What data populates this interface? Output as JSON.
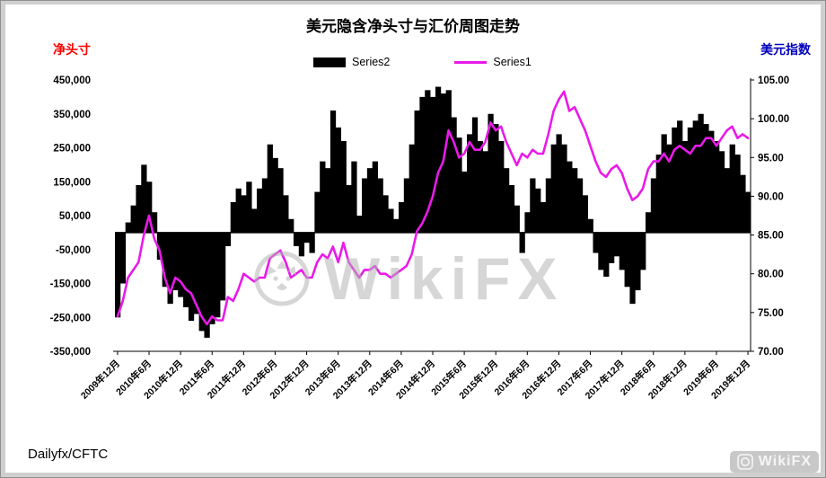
{
  "page": {
    "title": "美元隐含净头寸与汇价周图走势",
    "left_axis_title": "净头寸",
    "right_axis_title": "美元指数",
    "source": "Dailyfx/CFTC",
    "watermark_text": "WikiFX",
    "corner_watermark_text": "WikiFX"
  },
  "legend": {
    "series2_label": "Series2",
    "series1_label": "Series1"
  },
  "colors": {
    "bar": "#000000",
    "line": "#e91ae9",
    "left_axis_title": "#ff0000",
    "right_axis_title": "#0000bb",
    "background": "#cfcfcf",
    "panel": "#ffffff",
    "watermark": "#b5b5b5"
  },
  "chart_data": {
    "type": "combo",
    "title": "美元隐含净头寸与汇价周图走势",
    "legend_position": "top",
    "grid": false,
    "source": "Dailyfx/CFTC",
    "points_per_tick": 6,
    "x_tick_labels": [
      "2009年12月",
      "2010年6月",
      "2010年12月",
      "2011年6月",
      "2011年12月",
      "2012年6月",
      "2012年12月",
      "2013年6月",
      "2013年12月",
      "2014年6月",
      "2014年12月",
      "2015年6月",
      "2015年12月",
      "2016年6月",
      "2016年12月",
      "2017年6月",
      "2017年12月",
      "2018年6月",
      "2018年12月",
      "2019年6月",
      "2019年12月"
    ],
    "left_axis": {
      "title": "净头寸",
      "min": -350000,
      "max": 450000,
      "tick_values": [
        450000,
        350000,
        250000,
        150000,
        50000,
        -50000,
        -150000,
        -250000,
        -350000
      ],
      "tick_labels": [
        "450,000",
        "350,000",
        "250,000",
        "150,000",
        "50,000",
        "-50,000",
        "-150,000",
        "-250,000",
        "-350,000"
      ]
    },
    "right_axis": {
      "title": "美元指数",
      "min": 70,
      "max": 105,
      "tick_values": [
        105,
        100,
        95,
        90,
        85,
        80,
        75,
        70
      ],
      "tick_labels": [
        "105.00",
        "100.00",
        "95.00",
        "90.00",
        "85.00",
        "80.00",
        "75.00",
        "70.00"
      ]
    },
    "series": [
      {
        "name": "Series2",
        "type": "bar",
        "axis": "left",
        "color": "#000000",
        "values": [
          -250000,
          -150000,
          30000,
          80000,
          140000,
          200000,
          150000,
          60000,
          -80000,
          -160000,
          -210000,
          -170000,
          -190000,
          -220000,
          -260000,
          -240000,
          -290000,
          -310000,
          -270000,
          -250000,
          -200000,
          -40000,
          90000,
          130000,
          110000,
          150000,
          70000,
          130000,
          160000,
          260000,
          220000,
          190000,
          110000,
          40000,
          -40000,
          -70000,
          -30000,
          -60000,
          120000,
          210000,
          190000,
          360000,
          310000,
          270000,
          140000,
          210000,
          50000,
          160000,
          190000,
          210000,
          160000,
          110000,
          70000,
          40000,
          90000,
          160000,
          260000,
          360000,
          400000,
          420000,
          400000,
          430000,
          410000,
          420000,
          340000,
          280000,
          180000,
          290000,
          340000,
          270000,
          240000,
          350000,
          320000,
          270000,
          190000,
          140000,
          80000,
          -60000,
          60000,
          160000,
          130000,
          90000,
          160000,
          260000,
          290000,
          260000,
          210000,
          190000,
          160000,
          110000,
          40000,
          -60000,
          -110000,
          -130000,
          -90000,
          -70000,
          -110000,
          -160000,
          -210000,
          -170000,
          -110000,
          60000,
          160000,
          230000,
          290000,
          260000,
          310000,
          330000,
          270000,
          310000,
          330000,
          350000,
          320000,
          300000,
          270000,
          240000,
          190000,
          260000,
          230000,
          170000,
          120000
        ]
      },
      {
        "name": "Series1",
        "type": "line",
        "axis": "right",
        "color": "#e91ae9",
        "values": [
          74.5,
          76.5,
          79.5,
          80.5,
          81.5,
          85,
          87.5,
          84.5,
          83,
          79.5,
          77.5,
          79.5,
          79,
          78,
          77.5,
          76,
          74.5,
          73.5,
          74.5,
          74,
          74,
          77,
          76.5,
          78,
          80,
          79.5,
          79,
          79.5,
          79.5,
          82,
          82.5,
          83,
          81.5,
          79.5,
          80,
          80.5,
          79.5,
          79.5,
          81.5,
          82.5,
          82,
          83.5,
          81.5,
          84,
          81.5,
          80.5,
          79.5,
          80.5,
          80.5,
          81,
          80,
          80,
          79.5,
          80,
          80.5,
          81,
          82.5,
          85.5,
          86.5,
          88,
          90,
          93,
          94.5,
          98.5,
          97,
          95,
          95.5,
          97,
          96,
          96,
          97,
          99.5,
          98.5,
          99,
          97,
          95.5,
          94,
          95.5,
          95,
          96,
          95.5,
          95.5,
          98,
          101,
          102.5,
          103.5,
          101,
          101.5,
          100,
          98.5,
          96.5,
          94.5,
          93,
          92.5,
          93.5,
          94,
          93,
          91,
          89.5,
          90,
          91,
          93.5,
          94.5,
          94.5,
          95.5,
          94.5,
          96,
          96.5,
          96,
          95.5,
          96.5,
          96.5,
          97.5,
          97.5,
          96.5,
          97.5,
          98.5,
          99,
          97.5,
          98,
          97.5
        ]
      }
    ]
  }
}
